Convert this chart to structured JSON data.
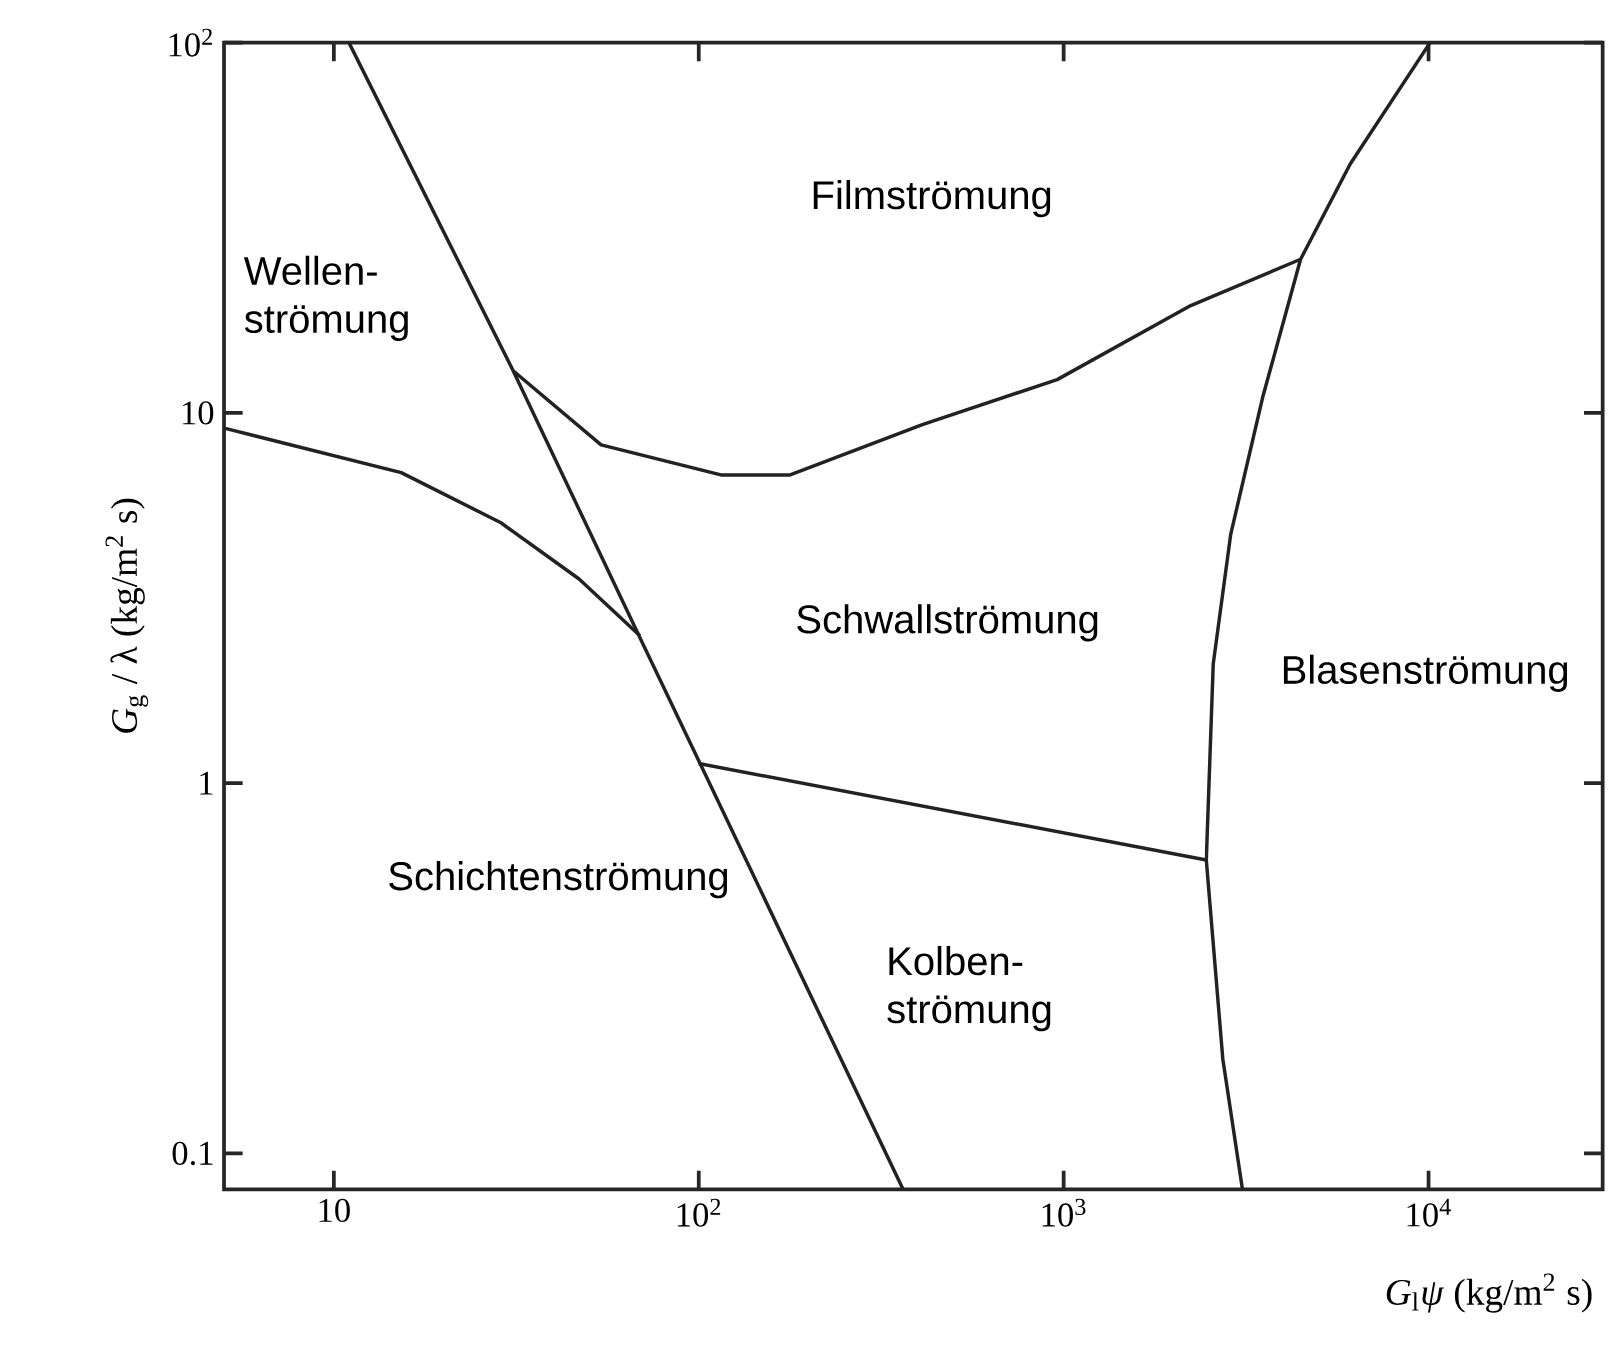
{
  "chart_data": {
    "type": "line",
    "xlabel": "*G*$_{l}$*ψ* (kg/m$^{2}$ s)",
    "ylabel": "*G*$_{g}$ / λ (kg/m$^{2}$ s)",
    "log": "xy",
    "grid": false,
    "marker": "none",
    "line_style": "solid",
    "xlim": [
      5,
      30000
    ],
    "ylim": [
      0.08,
      100
    ],
    "xticks": [
      10,
      {
        "value": 100,
        "label": "10$^{2}$"
      },
      {
        "value": 1000,
        "label": "10$^{3}$"
      },
      {
        "value": 10000,
        "label": "10$^{4}$"
      }
    ],
    "yticks": [
      0.1,
      1,
      10,
      {
        "value": 100,
        "label": "10$^{2}$"
      }
    ],
    "series": [
      {
        "color": "#222222",
        "x": [
          11,
          31,
          70,
          100,
          363
        ],
        "values": [
          100,
          13,
          2.4,
          1.15,
          0.08
        ]
      },
      {
        "color": "#222222",
        "x": [
          5,
          15.3,
          28.7,
          47,
          69
        ],
        "values": [
          9.1,
          6.9,
          5.05,
          3.56,
          2.5
        ]
      },
      {
        "color": "#222222",
        "x": [
          31,
          54,
          115,
          178,
          410,
          960,
          2230,
          4460
        ],
        "values": [
          13,
          8.2,
          6.8,
          6.8,
          9.3,
          12.3,
          19.5,
          26
        ]
      },
      {
        "color": "#222222",
        "x": [
          10100,
          6100,
          4460,
          3510,
          2870,
          2570,
          2460,
          2730,
          3090
        ],
        "values": [
          100,
          47,
          26,
          11,
          4.7,
          2.1,
          0.62,
          0.18,
          0.08
        ]
      },
      {
        "color": "#222222",
        "x": [
          100,
          2460
        ],
        "values": [
          1.13,
          0.62
        ]
      }
    ],
    "annotations": [
      "Filmströmung",
      "Wellen- strömung",
      "Schwallströmung",
      "Blasenströmung",
      "Schichtenströmung",
      "Kolben- strömung"
    ]
  }
}
